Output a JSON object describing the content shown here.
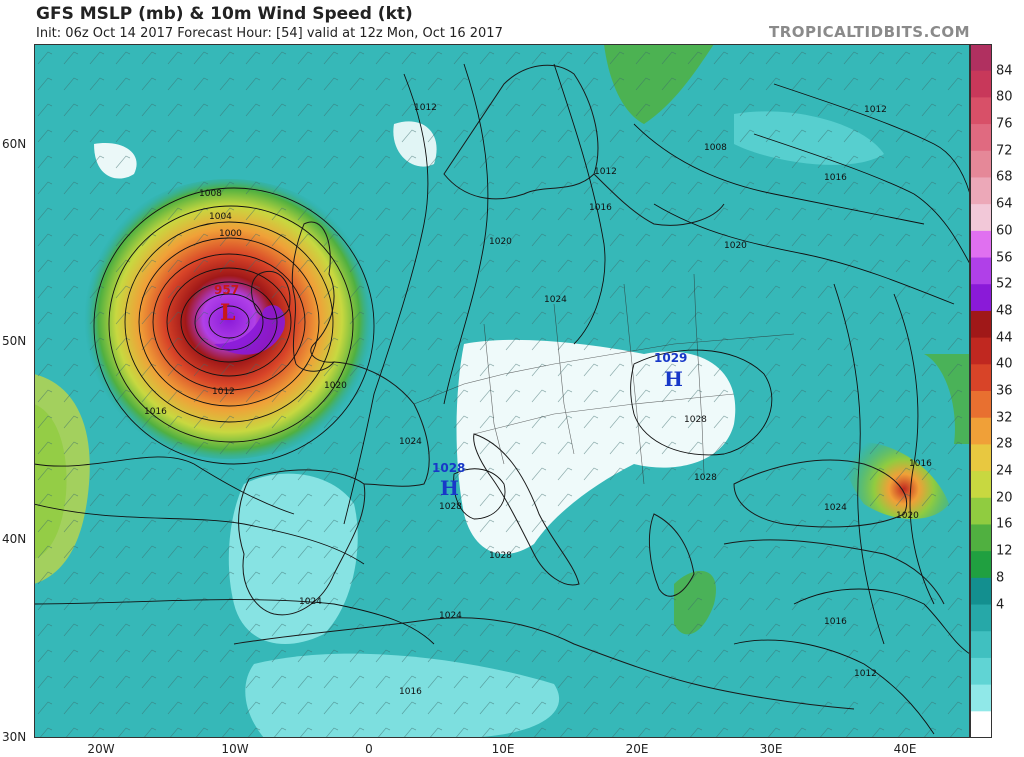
{
  "header": {
    "title": "GFS MSLP (mb) & 10m Wind Speed (kt)",
    "subtitle": "Init: 06z Oct 14 2017   Forecast Hour: [54]   valid at 12z Mon, Oct 16 2017",
    "brand": "TROPICALTIDBITS.COM"
  },
  "axes": {
    "lat_labels": [
      "60N",
      "50N",
      "40N",
      "30N"
    ],
    "lon_labels": [
      "20W",
      "10W",
      "0",
      "10E",
      "20E",
      "30E",
      "40E"
    ]
  },
  "colorbar": {
    "labels": [
      "84",
      "80",
      "76",
      "72",
      "68",
      "64",
      "60",
      "56",
      "52",
      "48",
      "44",
      "40",
      "36",
      "32",
      "28",
      "24",
      "20",
      "16",
      "12",
      "8",
      "4"
    ],
    "colors": [
      "#b03060",
      "#c8385a",
      "#d85068",
      "#e06a80",
      "#e58898",
      "#eca8b8",
      "#f2c8d8",
      "#e070f0",
      "#b040e8",
      "#8a1ad8",
      "#a01818",
      "#c02820",
      "#d84428",
      "#e87030",
      "#f0a038",
      "#e8c840",
      "#c8d840",
      "#90cc40",
      "#50b040",
      "#20a040",
      "#138f8f",
      "#26a8a8",
      "#40c0c0",
      "#60d4d4",
      "#90e8e8",
      "#ffffff"
    ]
  },
  "features": {
    "low": {
      "symbol": "L",
      "pressure": "957"
    },
    "highs": [
      {
        "symbol": "H",
        "pressure": "1029"
      },
      {
        "symbol": "H",
        "pressure": "1028"
      }
    ],
    "isobar_labels": [
      "1008",
      "1004",
      "1000",
      "1012",
      "1016",
      "1020",
      "1024",
      "1028",
      "1016",
      "1020",
      "1024",
      "1028",
      "1012",
      "1016",
      "1020",
      "1024",
      "1028",
      "1016",
      "1012",
      "1016",
      "1020",
      "1024",
      "1028",
      "1024",
      "1012",
      "1008",
      "1012",
      "1016"
    ]
  }
}
